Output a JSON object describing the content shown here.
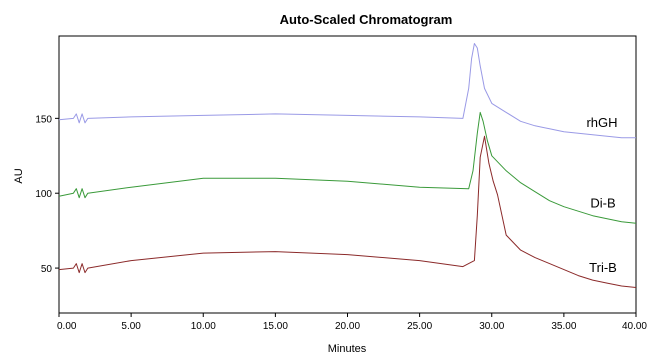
{
  "chart_data": {
    "type": "line",
    "title": "Auto-Scaled Chromatogram",
    "xlabel": "Minutes",
    "ylabel": "AU",
    "xlim": [
      0,
      40
    ],
    "ylim": [
      20,
      205
    ],
    "x_ticks": [
      0,
      5,
      10,
      15,
      20,
      25,
      30,
      35,
      40
    ],
    "x_tick_labels": [
      "0.00",
      "5.00",
      "10.00",
      "15.00",
      "20.00",
      "25.00",
      "30.00",
      "35.00",
      "40.00"
    ],
    "y_ticks": [
      50,
      100,
      150
    ],
    "y_tick_labels": [
      "50",
      "100",
      "150"
    ],
    "grid": false,
    "series": [
      {
        "name": "rhGH",
        "color": "#9a9ae6",
        "x": [
          0,
          1.0,
          1.2,
          1.4,
          1.6,
          1.8,
          2.0,
          5,
          10,
          15,
          20,
          25,
          28.0,
          28.4,
          28.6,
          28.8,
          29.0,
          29.2,
          29.5,
          30,
          31,
          32,
          33,
          34,
          35,
          36,
          37,
          38,
          39,
          40
        ],
        "values": [
          149,
          150,
          153,
          147,
          153,
          147,
          150,
          151,
          152,
          153,
          152,
          151,
          150,
          170,
          190,
          200,
          197,
          185,
          170,
          160,
          154,
          148,
          145,
          143,
          141,
          140,
          139,
          138,
          137,
          137
        ]
      },
      {
        "name": "Di-B",
        "color": "#3a9a3a",
        "x": [
          0,
          0.5,
          1.0,
          1.2,
          1.4,
          1.6,
          1.8,
          2.0,
          5,
          10,
          15,
          20,
          25,
          28.4,
          28.7,
          29.0,
          29.2,
          29.4,
          29.7,
          30,
          31,
          32,
          33,
          34,
          35,
          36,
          37,
          38,
          39,
          40
        ],
        "values": [
          98,
          99,
          100,
          103,
          97,
          103,
          97,
          100,
          104,
          110,
          110,
          108,
          104,
          103,
          115,
          140,
          154,
          148,
          135,
          125,
          115,
          107,
          101,
          95,
          91,
          88,
          85,
          83,
          81,
          80
        ]
      },
      {
        "name": "Tri-B",
        "color": "#8b2a2a",
        "x": [
          0,
          1.0,
          1.2,
          1.4,
          1.6,
          1.8,
          2.0,
          5,
          10,
          15,
          20,
          25,
          28.0,
          28.8,
          29.0,
          29.2,
          29.5,
          29.8,
          30.1,
          30.4,
          31,
          32,
          33,
          34,
          35,
          36,
          37,
          38,
          39,
          40
        ],
        "values": [
          49,
          50,
          53,
          47,
          53,
          47,
          50,
          55,
          60,
          61,
          59,
          55,
          51,
          55,
          85,
          124,
          138,
          120,
          108,
          99,
          72,
          62,
          57,
          53,
          49,
          45,
          42,
          40,
          38,
          37
        ]
      }
    ]
  }
}
